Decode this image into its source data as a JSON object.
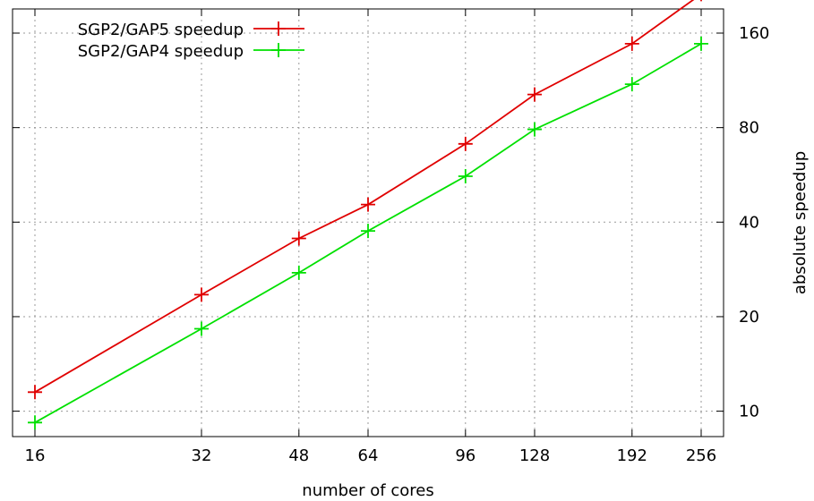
{
  "chart_data": {
    "type": "line",
    "title": "",
    "xlabel": "number of cores",
    "ylabel": "absolute speedup",
    "x_scale": "log2",
    "y_scale": "log",
    "x_ticks": [
      16,
      32,
      48,
      64,
      96,
      128,
      192,
      256
    ],
    "y_ticks": [
      10,
      20,
      40,
      80,
      160
    ],
    "xlim": [
      16,
      256
    ],
    "ylim": [
      8.3,
      191
    ],
    "grid": true,
    "legend_position": "top-left",
    "x": [
      16,
      32,
      48,
      64,
      96,
      128,
      192,
      256
    ],
    "series": [
      {
        "name": "SGP2/GAP5 speedup",
        "color": "#e00000",
        "values": [
          11.5,
          23.5,
          35.5,
          45.5,
          71,
          102,
          148,
          213
        ]
      },
      {
        "name": "SGP2/GAP4 speedup",
        "color": "#00e000",
        "values": [
          9.2,
          18.3,
          27.6,
          37.5,
          56,
          79,
          110,
          148
        ]
      }
    ]
  }
}
